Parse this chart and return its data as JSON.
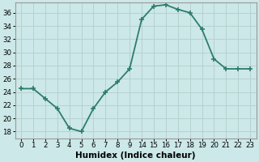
{
  "x_indices": [
    0,
    1,
    2,
    3,
    4,
    5,
    6,
    7,
    8,
    9,
    10,
    11,
    12,
    13,
    14,
    15,
    16,
    17,
    18,
    19
  ],
  "y": [
    24.5,
    24.5,
    23.0,
    21.5,
    18.5,
    18.0,
    21.5,
    24.0,
    25.5,
    27.5,
    35.0,
    37.0,
    37.2,
    36.5,
    36.0,
    33.5,
    29.0,
    27.5,
    27.5,
    27.5
  ],
  "xtick_positions": [
    0,
    1,
    2,
    3,
    4,
    5,
    6,
    7,
    8,
    9,
    10,
    11,
    12,
    13,
    14,
    15,
    16,
    17,
    18,
    19
  ],
  "xtick_labels": [
    "0",
    "1",
    "2",
    "3",
    "4",
    "5",
    "6",
    "7",
    "8",
    "9",
    "14",
    "15",
    "16",
    "17",
    "18",
    "19",
    "20",
    "21",
    "22",
    "23"
  ],
  "yticks": [
    18,
    20,
    22,
    24,
    26,
    28,
    30,
    32,
    34,
    36
  ],
  "xlim": [
    -0.5,
    19.5
  ],
  "ylim": [
    17.0,
    37.5
  ],
  "line_color": "#2d7d6d",
  "bg_color": "#cce8e8",
  "grid_color": "#b8d0d0",
  "xlabel": "Humidex (Indice chaleur)",
  "marker": "+",
  "markersize": 5,
  "linewidth": 1.3
}
